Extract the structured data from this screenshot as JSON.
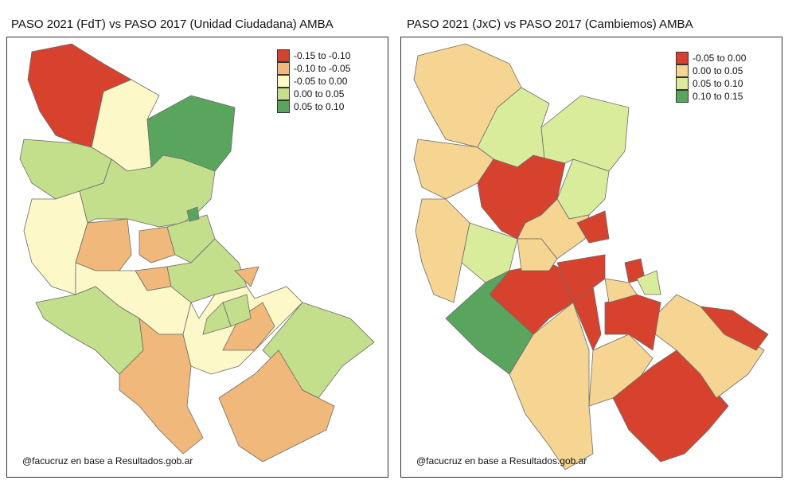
{
  "maps": [
    {
      "title": "PASO 2021 (FdT) vs PASO 2017 (Unidad Ciudadana) AMBA",
      "legend": [
        {
          "label": "-0.15 to -0.10",
          "color": "#d7422e"
        },
        {
          "label": "-0.10 to -0.05",
          "color": "#f0b87a"
        },
        {
          "label": "-0.05 to 0.00",
          "color": "#fdf8c8"
        },
        {
          "label": "0.00 to 0.05",
          "color": "#c3df8c"
        },
        {
          "label": "0.05 to 0.10",
          "color": "#5aa55e"
        }
      ],
      "credit": "@facucruz en base a Resultados.gob.ar"
    },
    {
      "title": "PASO 2021 (JxC) vs PASO 2017 (Cambiemos) AMBA",
      "legend": [
        {
          "label": "-0.05 to 0.00",
          "color": "#d7422e"
        },
        {
          "label": "0.00 to 0.05",
          "color": "#f6d592"
        },
        {
          "label": "0.05 to 0.10",
          "color": "#d9ec9c"
        },
        {
          "label": "0.10 to 0.15",
          "color": "#5aa55e"
        }
      ],
      "credit": "@facucruz en base a Resultados.gob.ar"
    }
  ]
}
